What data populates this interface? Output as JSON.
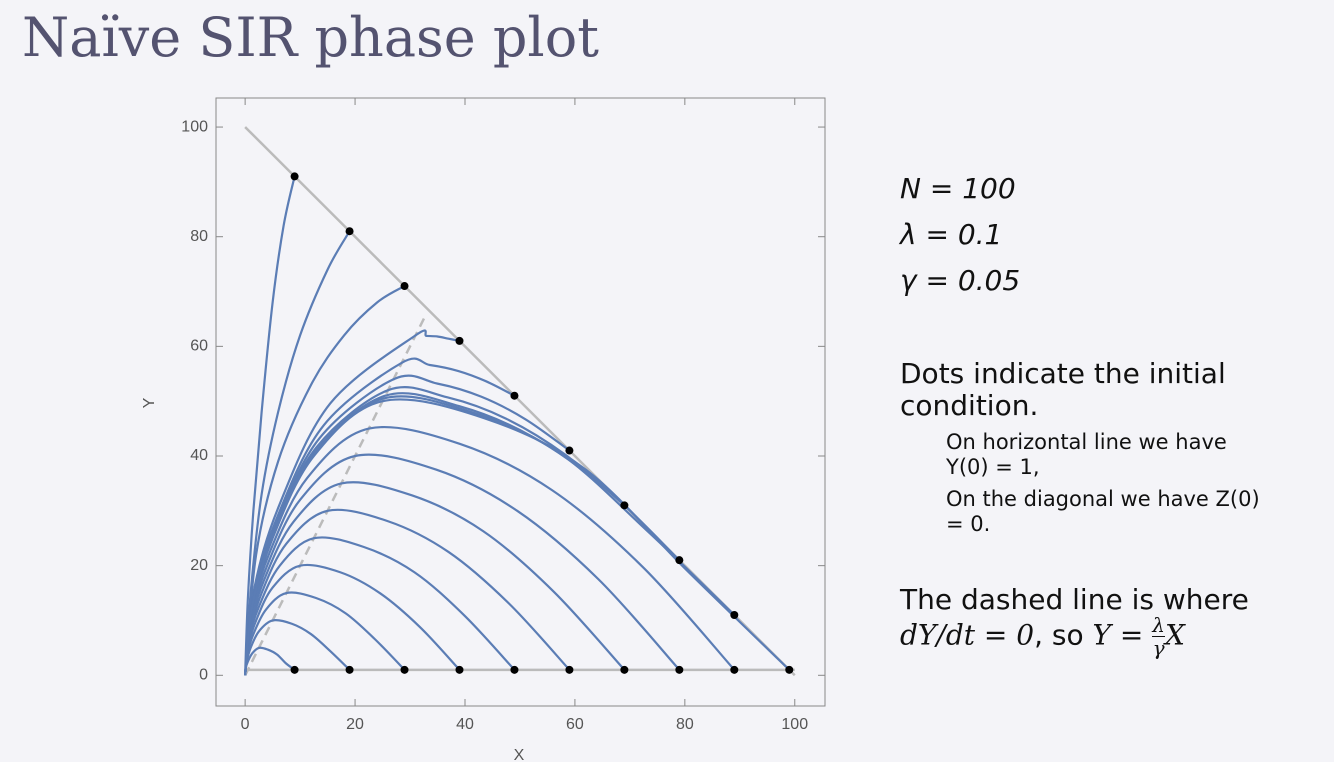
{
  "slide": {
    "title": "Naïve SIR phase plot",
    "params": [
      "N = 100",
      "λ = 0.1",
      "γ = 0.05"
    ],
    "note": "Dots indicate the initial condition.",
    "bullets": [
      "On horizontal line we have Y(0) = 1,",
      "On the diagonal we have Z(0) = 0."
    ],
    "dashed_note": "The dashed line is where",
    "formula": "dY/dt = 0",
    "formula_so": ", so",
    "formula_lhs": "Y =",
    "frac_num": "λ",
    "frac_den": "γ",
    "formula_end": "X"
  },
  "chart_data": {
    "type": "line",
    "xlabel": "X",
    "ylabel": "Y",
    "xlim": [
      -5.3,
      105.5
    ],
    "ylim": [
      -5.6,
      105.3
    ],
    "xticks": [
      0,
      20,
      40,
      60,
      80,
      100
    ],
    "yticks": [
      0,
      20,
      40,
      60,
      80,
      100
    ],
    "color": "#5b7db5",
    "marker_color": "#000000",
    "reference_lines": [
      {
        "x": [
          0,
          100
        ],
        "y": [
          100,
          0
        ],
        "color": "#bbbbbb",
        "dashed": false
      },
      {
        "x": [
          0,
          100
        ],
        "y": [
          1,
          1
        ],
        "color": "#bbbbbb",
        "dashed": false
      },
      {
        "x": [
          0,
          33
        ],
        "y": [
          0,
          66
        ],
        "color": "#bbbbbb",
        "dashed": true
      }
    ],
    "series": [
      {
        "x": [
          9,
          7.4,
          5.8,
          4.1,
          2.5,
          1.3,
          0.5,
          0.1,
          0
        ],
        "y": [
          1,
          2.2,
          3.8,
          4.7,
          5,
          4,
          2.5,
          1.3,
          0
        ]
      },
      {
        "x": [
          19,
          15.5,
          12,
          8.5,
          5,
          2.5,
          1,
          0.3,
          0
        ],
        "y": [
          1,
          4.4,
          7.5,
          9.4,
          10,
          8,
          5,
          2.5,
          0
        ]
      },
      {
        "x": [
          29,
          23.6,
          18.3,
          12.9,
          7.5,
          3.8,
          1.5,
          0.4,
          0
        ],
        "y": [
          1,
          6.6,
          11.3,
          14.1,
          15,
          12,
          7.5,
          3.8,
          0
        ]
      },
      {
        "x": [
          39,
          31.8,
          24.5,
          17.3,
          10,
          5,
          2,
          0.5,
          0
        ],
        "y": [
          1,
          8.8,
          15,
          18.8,
          20,
          16,
          10,
          5,
          0
        ]
      },
      {
        "x": [
          49,
          39.9,
          30.8,
          21.6,
          12.5,
          6.3,
          2.5,
          0.6,
          0
        ],
        "y": [
          1,
          10.9,
          18.8,
          23.4,
          25,
          20,
          12.5,
          6.3,
          0
        ]
      },
      {
        "x": [
          59,
          48,
          37,
          26,
          15,
          7.5,
          3,
          0.8,
          0
        ],
        "y": [
          1,
          13.1,
          22.5,
          28.1,
          30,
          24,
          15,
          7.5,
          0
        ]
      },
      {
        "x": [
          69,
          56.1,
          43.3,
          30.4,
          17.5,
          8.8,
          3.5,
          0.9,
          0
        ],
        "y": [
          1,
          15.3,
          26.3,
          32.8,
          35,
          28,
          17.5,
          8.8,
          0
        ]
      },
      {
        "x": [
          79,
          64.3,
          49.5,
          34.8,
          20,
          10,
          4,
          1,
          0
        ],
        "y": [
          1,
          17.5,
          30,
          37.5,
          40,
          32,
          20,
          10,
          0
        ]
      },
      {
        "x": [
          89,
          72.4,
          55.8,
          39.1,
          22.5,
          11.3,
          4.5,
          1.1,
          0
        ],
        "y": [
          1,
          19.7,
          33.8,
          42.2,
          45,
          36,
          22.5,
          11.3,
          0
        ]
      },
      {
        "x": [
          99,
          80.5,
          62,
          43.5,
          25,
          12.5,
          5,
          1.3,
          0
        ],
        "y": [
          1,
          19,
          37.5,
          46.9,
          50,
          40,
          25,
          12.5,
          0
        ]
      },
      {
        "x": [
          9,
          7,
          5,
          3,
          1.5,
          0.5,
          0
        ],
        "y": [
          91,
          82,
          68,
          48,
          30,
          14,
          0
        ]
      },
      {
        "x": [
          19,
          15,
          10,
          6,
          3,
          1,
          0
        ],
        "y": [
          81,
          74,
          62,
          48,
          33,
          15,
          0
        ]
      },
      {
        "x": [
          29,
          24,
          18,
          12,
          6,
          2,
          0
        ],
        "y": [
          71,
          68,
          62,
          53,
          39,
          22,
          0
        ]
      },
      {
        "x": [
          39,
          37,
          35,
          33,
          31,
          15.5,
          6.2,
          1.6,
          0
        ],
        "y": [
          61,
          61.4,
          61.8,
          61.9,
          62,
          49.6,
          31,
          15.5,
          0
        ]
      },
      {
        "x": [
          49,
          43.9,
          38.8,
          33.6,
          28.5,
          14.3,
          5.7,
          1.4,
          0
        ],
        "y": [
          51,
          53.6,
          55.5,
          56.6,
          57,
          45.6,
          28.5,
          14.3,
          0
        ]
      },
      {
        "x": [
          59,
          51,
          43,
          35,
          27,
          13.5,
          5.4,
          1.4,
          0
        ],
        "y": [
          41,
          46.7,
          50.8,
          53.2,
          54,
          43.2,
          27,
          13.5,
          0
        ]
      },
      {
        "x": [
          69,
          58.3,
          47.5,
          36.8,
          26,
          13,
          5.2,
          1.3,
          0
        ],
        "y": [
          31,
          40.2,
          46.8,
          50.7,
          52,
          41.6,
          26,
          13,
          0
        ]
      },
      {
        "x": [
          79,
          65.6,
          52.3,
          38.9,
          25.5,
          12.8,
          5.1,
          1.3,
          0
        ],
        "y": [
          21,
          34.1,
          43.5,
          49.1,
          51,
          40.8,
          25.5,
          12.8,
          0
        ]
      },
      {
        "x": [
          89,
          73,
          57.1,
          41.2,
          25.2,
          12.6,
          5,
          1.3,
          0
        ],
        "y": [
          11,
          26.5,
          40.6,
          48,
          50.5,
          40.4,
          25.3,
          12.6,
          0
        ]
      }
    ]
  }
}
